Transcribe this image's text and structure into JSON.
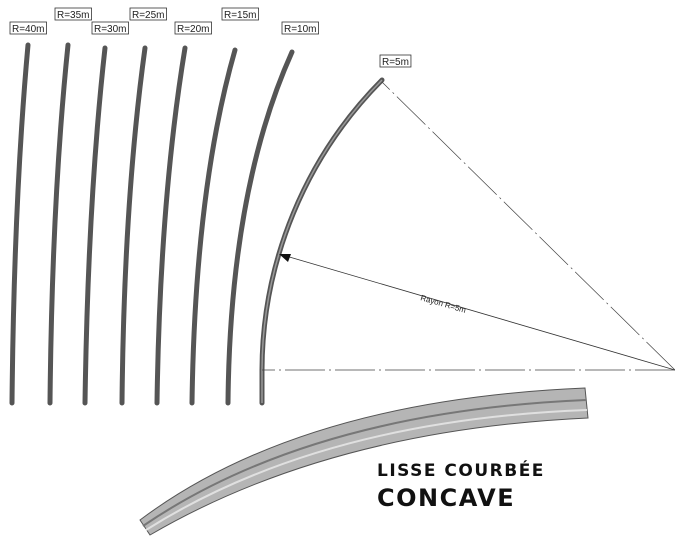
{
  "labels": [
    "R=40m",
    "R=35m",
    "R=30m",
    "R=25m",
    "R=20m",
    "R=15m",
    "R=10m",
    "R=5m"
  ],
  "radius_label": "Rayon R=5m",
  "caption": {
    "line1": "LISSE COURBÉE",
    "line2": "CONCAVE"
  }
}
